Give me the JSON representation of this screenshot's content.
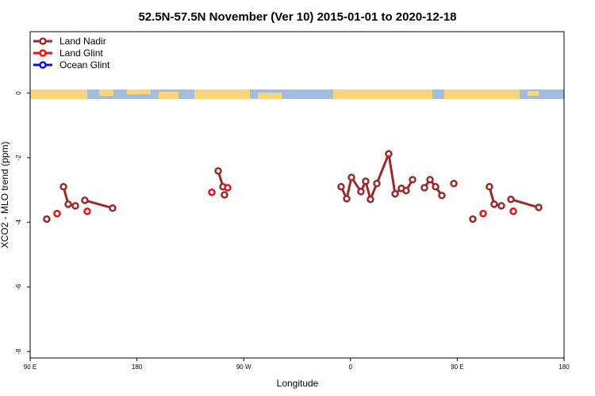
{
  "chart_data": {
    "type": "line",
    "title": "52.5N-57.5N November (Ver 10)   2015-01-01 to 2020-12-18",
    "x_label": "Longitude",
    "y_label": "XCO2 - MLO trend (ppm)",
    "xlim": [
      90,
      540
    ],
    "ylim": [
      -8.2,
      1.9
    ],
    "xticks": [
      {
        "value": 90,
        "label": "90 E"
      },
      180,
      {
        "value": 270,
        "label": "90 W"
      },
      {
        "value": 360,
        "label": "0"
      },
      {
        "value": 450,
        "label": "90 E"
      },
      {
        "value": 540,
        "label": "180"
      }
    ],
    "yticks": [
      0,
      -2,
      -4,
      -6,
      -8
    ],
    "legend": "top-left",
    "series": [
      {
        "name": "Land Nadir",
        "color": "#9b2a2a",
        "x": [
          104.0,
          null,
          118.1,
          122.1,
          128.1,
          null,
          136.1,
          159.5,
          null,
          248.5,
          252.5,
          null,
          253.8,
          null,
          352.1,
          356.8,
          360.8,
          368.8,
          372.8,
          376.8,
          382.2,
          392.2,
          397.6,
          402.9,
          406.9,
          412.3,
          null,
          422.3,
          427.0,
          431.7,
          437.0,
          null,
          447.1,
          null,
          463.1,
          null,
          477.1,
          481.1,
          487.2,
          null,
          495.2,
          518.6
        ],
        "values": [
          -3.9,
          null,
          -2.9,
          -3.44,
          -3.49,
          null,
          -3.32,
          -3.56,
          null,
          -2.41,
          -2.9,
          null,
          -3.15,
          null,
          -2.9,
          -3.27,
          -2.61,
          -3.05,
          -2.73,
          -3.29,
          -2.8,
          -1.88,
          -3.12,
          -2.95,
          -3.02,
          -2.68,
          null,
          -2.93,
          -2.68,
          -2.9,
          -3.17,
          null,
          -2.8,
          null,
          -3.9,
          null,
          -2.9,
          -3.44,
          -3.49,
          null,
          -3.29,
          -3.54
        ]
      },
      {
        "name": "Land Glint",
        "color": "#ee1111",
        "markers_only": true,
        "x": [
          112.7,
          138.1,
          243.1,
          256.5,
          471.8,
          497.2
        ],
        "values": [
          -3.73,
          -3.66,
          -3.07,
          -2.93,
          -3.73,
          -3.66
        ]
      },
      {
        "name": "Ocean Glint",
        "color": "#1111dd",
        "markers_only": true,
        "x": [],
        "values": []
      }
    ]
  }
}
